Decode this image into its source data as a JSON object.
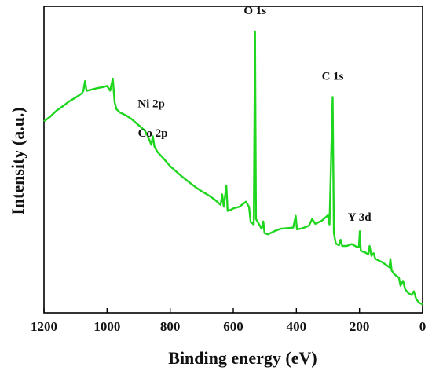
{
  "chart_data": {
    "type": "line",
    "title": "",
    "xlabel": "Binding energy (eV)",
    "ylabel": "Intensity (a.u.)",
    "x_reversed": true,
    "xlim": [
      1200,
      0
    ],
    "ylim": [
      0,
      100
    ],
    "x_ticks": [
      "1200",
      "1000",
      "800",
      "600",
      "400",
      "200",
      "0"
    ],
    "y_ticks_shown": false,
    "grid": false,
    "legend": "none",
    "colors": {
      "series": "#1ed61e",
      "axes": "#000000"
    },
    "series": [
      {
        "name": "",
        "points": [
          [
            1200,
            62.5
          ],
          [
            1180,
            64.0
          ],
          [
            1160,
            66.0
          ],
          [
            1140,
            67.4
          ],
          [
            1120,
            69.0
          ],
          [
            1100,
            70.2
          ],
          [
            1080,
            71.6
          ],
          [
            1075,
            72.5
          ],
          [
            1070,
            75.6
          ],
          [
            1065,
            72.4
          ],
          [
            1050,
            72.8
          ],
          [
            1030,
            73.3
          ],
          [
            1010,
            73.7
          ],
          [
            1000,
            74.0
          ],
          [
            990,
            72.5
          ],
          [
            982,
            76.4
          ],
          [
            976,
            68.6
          ],
          [
            970,
            66.4
          ],
          [
            960,
            65.4
          ],
          [
            940,
            64.4
          ],
          [
            920,
            63.0
          ],
          [
            900,
            61.2
          ],
          [
            880,
            59.4
          ],
          [
            870,
            57.4
          ],
          [
            860,
            54.8
          ],
          [
            855,
            57.6
          ],
          [
            850,
            54.2
          ],
          [
            840,
            52.4
          ],
          [
            820,
            50.2
          ],
          [
            800,
            47.8
          ],
          [
            780,
            46.0
          ],
          [
            760,
            44.2
          ],
          [
            740,
            42.6
          ],
          [
            720,
            41.0
          ],
          [
            700,
            39.6
          ],
          [
            680,
            38.4
          ],
          [
            660,
            37.0
          ],
          [
            640,
            35.2
          ],
          [
            635,
            38.6
          ],
          [
            630,
            34.6
          ],
          [
            622,
            41.4
          ],
          [
            618,
            33.2
          ],
          [
            610,
            33.5
          ],
          [
            600,
            34.0
          ],
          [
            580,
            34.6
          ],
          [
            560,
            36.2
          ],
          [
            550,
            34.5
          ],
          [
            545,
            29.6
          ],
          [
            535,
            28.8
          ],
          [
            531,
            91.8
          ],
          [
            528,
            30.6
          ],
          [
            520,
            29.2
          ],
          [
            510,
            27.4
          ],
          [
            505,
            29.8
          ],
          [
            501,
            26.0
          ],
          [
            490,
            25.6
          ],
          [
            470,
            26.6
          ],
          [
            450,
            27.4
          ],
          [
            430,
            27.6
          ],
          [
            410,
            27.8
          ],
          [
            402,
            31.6
          ],
          [
            398,
            27.2
          ],
          [
            380,
            27.6
          ],
          [
            360,
            28.4
          ],
          [
            350,
            30.6
          ],
          [
            340,
            29.0
          ],
          [
            320,
            30.0
          ],
          [
            300,
            31.8
          ],
          [
            295,
            28.8
          ],
          [
            285,
            70.4
          ],
          [
            281,
            26.0
          ],
          [
            275,
            22.6
          ],
          [
            265,
            22.0
          ],
          [
            260,
            23.8
          ],
          [
            255,
            21.8
          ],
          [
            240,
            21.8
          ],
          [
            225,
            22.4
          ],
          [
            210,
            21.6
          ],
          [
            202,
            21.4
          ],
          [
            199,
            26.6
          ],
          [
            196,
            20.2
          ],
          [
            180,
            19.6
          ],
          [
            172,
            19.0
          ],
          [
            168,
            21.8
          ],
          [
            162,
            18.6
          ],
          [
            155,
            19.4
          ],
          [
            150,
            17.6
          ],
          [
            130,
            16.6
          ],
          [
            115,
            15.6
          ],
          [
            105,
            14.8
          ],
          [
            102,
            17.6
          ],
          [
            98,
            13.8
          ],
          [
            90,
            12.6
          ],
          [
            75,
            11.4
          ],
          [
            70,
            8.8
          ],
          [
            62,
            10.4
          ],
          [
            55,
            7.6
          ],
          [
            45,
            6.4
          ],
          [
            35,
            5.8
          ],
          [
            28,
            7.0
          ],
          [
            20,
            4.4
          ],
          [
            10,
            3.2
          ],
          [
            0,
            2.8
          ]
        ]
      }
    ],
    "annotations": [
      {
        "text": "O 1s",
        "x": 531,
        "y": 97.5
      },
      {
        "text": "C 1s",
        "x": 285,
        "y": 76.0
      },
      {
        "text": "Ni 2p",
        "x": 860,
        "y": 67.0
      },
      {
        "text": "Co 2p",
        "x": 855,
        "y": 57.5
      },
      {
        "text": "Y 3d",
        "x": 200,
        "y": 30.0
      }
    ]
  }
}
